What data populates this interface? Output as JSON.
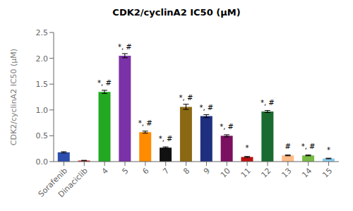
{
  "chart_data": {
    "type": "bar",
    "title": "CDK2/cyclinA2 IC50 (μM)",
    "ylabel": "CDK2/cyclinA2  IC50 (μM)",
    "categories": [
      "Sorafenib",
      "Dinaciclib",
      "4",
      "5",
      "6",
      "7",
      "8",
      "9",
      "10",
      "11",
      "12",
      "13",
      "14",
      "15"
    ],
    "values": [
      0.18,
      0.02,
      1.35,
      2.05,
      0.57,
      0.27,
      1.06,
      0.88,
      0.5,
      0.09,
      0.97,
      0.12,
      0.12,
      0.06
    ],
    "errors": [
      0.012,
      0.005,
      0.03,
      0.04,
      0.02,
      0.015,
      0.05,
      0.03,
      0.02,
      0.01,
      0.02,
      0.008,
      0.008,
      0.006
    ],
    "colors": [
      "#2B4DAE",
      "#DD1111",
      "#22A822",
      "#7B32A8",
      "#FF8C00",
      "#111111",
      "#8B6914",
      "#1F2F80",
      "#7B1060",
      "#BB1111",
      "#1A6B30",
      "#FFBB88",
      "#77BB44",
      "#88CCEE"
    ],
    "annotations": [
      null,
      null,
      "*, #",
      "*, #",
      "*, #",
      "*, #",
      "*, #",
      "*, #",
      "*, #",
      "*",
      "*, #",
      "#",
      "*, #",
      "*"
    ],
    "ylim": [
      0,
      2.5
    ],
    "yticks": [
      {
        "value": 0.0,
        "label": "0.0"
      },
      {
        "value": 0.5,
        "label": "0.5"
      },
      {
        "value": 1.0,
        "label": "1.0"
      },
      {
        "value": 1.5,
        "label": "1.5"
      },
      {
        "value": 2.0,
        "label": "2.0"
      },
      {
        "value": 2.5,
        "label": "2.5"
      }
    ],
    "grid": false
  }
}
